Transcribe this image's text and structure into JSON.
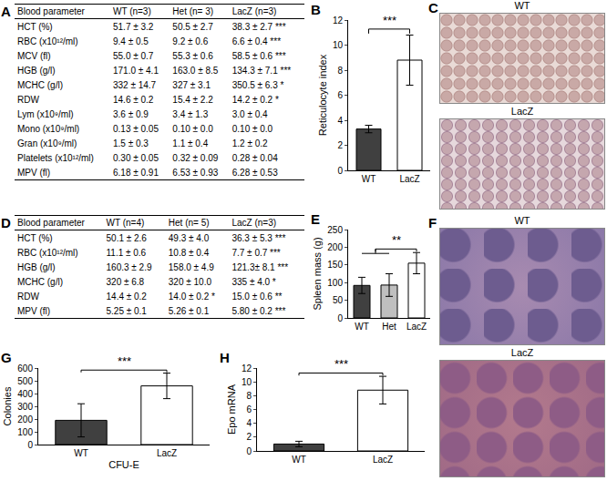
{
  "tables": [
    {
      "panel": "A",
      "header": [
        "Blood parameter",
        "WT (n=3)",
        "Het (n= 3)",
        "LacZ (n=3)"
      ],
      "rows": [
        [
          "HCT (%)",
          "51.7 ± 3.2",
          "50.5 ± 2.7",
          "38.3 ± 2.7 ***"
        ],
        [
          "RBC (x10¹²/ml)",
          "9.4 ± 0.5",
          "9.2 ± 0.6",
          "6.6 ± 0.4 ***"
        ],
        [
          "MCV (fl)",
          "55.0 ± 0.7",
          "55.3 ± 0.6",
          "58.5 ± 0.6 ***"
        ],
        [
          "HGB (g/l)",
          "171.0 ± 4.1",
          "163.0 ± 8.5",
          "134.3 ± 7.1 ***"
        ],
        [
          "MCHC (g/l)",
          "332 ± 14.7",
          "327 ± 3.1",
          "350.5 ± 6.3 *"
        ],
        [
          "RDW",
          "14.6 ± 0.2",
          "15.4 ± 2.2",
          "14.2 ± 0.2 *"
        ],
        [
          "Lym (x10⁹/ml)",
          "3.6 ± 0.9",
          "3.4 ± 1.3",
          "3.0 ± 0.4"
        ],
        [
          "Mono (x10⁹/ml)",
          "0.13 ± 0.05",
          "0.10 ± 0.0",
          "0.10 ± 0.0"
        ],
        [
          "Gran (x10⁹/ml)",
          "1.5 ± 0.3",
          "1.1 ± 0.4",
          "1.2 ± 0.2"
        ],
        [
          "Platelets (x10¹²/ml)",
          "0.30 ± 0.05",
          "0.32 ± 0.09",
          "0.28 ± 0.04"
        ],
        [
          "MPV (fl)",
          "6.18 ± 0.91",
          "6.53 ± 0.93",
          "6.28 ± 0.53"
        ]
      ]
    },
    {
      "panel": "D",
      "header": [
        "Blood parameter",
        "WT (n=4)",
        "Het (n= 5)",
        "LacZ (n=3)"
      ],
      "rows": [
        [
          "HCT (%)",
          "50.1 ± 2.6",
          "49.3 ± 4.0",
          "36.3 ± 5.3 ***"
        ],
        [
          "RBC (x10¹²/ml)",
          "11.1 ± 0.6",
          "10.8 ± 0.4",
          "7.7 ± 0.7 ***"
        ],
        [
          "HGB (g/l)",
          "160.3 ± 2.9",
          "158.0 ± 4.9",
          "121.3± 8.1 ***"
        ],
        [
          "MCHC (g/l)",
          "320 ± 6.8",
          "320 ± 10.0",
          "335 ± 4.0 *"
        ],
        [
          "RDW",
          "14.4 ± 0.2",
          "14.0 ± 0.2 *",
          "15.0 ± 0.6 **"
        ],
        [
          "MPV (fl)",
          "5.25 ± 0.1",
          "5.26 ± 0.1",
          "5.80 ± 0.2 ***"
        ]
      ]
    }
  ],
  "chart_data": [
    {
      "panel": "B",
      "type": "bar",
      "ylabel": "Reticulocyte index",
      "categories": [
        "WT",
        "LacZ"
      ],
      "values": [
        3.3,
        8.8
      ],
      "errors": [
        0.3,
        2.0
      ],
      "colors": [
        "#404040",
        "#ffffff"
      ],
      "ylim": [
        0,
        12
      ],
      "yticks": [
        0,
        2,
        4,
        6,
        8,
        10,
        12
      ],
      "annotations": [
        "***"
      ]
    },
    {
      "panel": "E",
      "type": "bar",
      "ylabel": "Spleen mass (g)",
      "categories": [
        "WT",
        "Het",
        "LacZ"
      ],
      "values": [
        92,
        93,
        155
      ],
      "errors": [
        23,
        32,
        30
      ],
      "colors": [
        "#404040",
        "#bfbfbf",
        "#ffffff"
      ],
      "ylim": [
        0,
        250
      ],
      "yticks": [
        0,
        50,
        100,
        150,
        200,
        250
      ],
      "annotations": [
        "**"
      ]
    },
    {
      "panel": "G",
      "type": "bar",
      "ylabel": "Colonies",
      "xlabel": "CFU-E",
      "categories": [
        "WT",
        "LacZ"
      ],
      "values": [
        190,
        460
      ],
      "errors": [
        130,
        100
      ],
      "colors": [
        "#404040",
        "#ffffff"
      ],
      "ylim": [
        0,
        600
      ],
      "yticks": [
        0,
        100,
        200,
        300,
        400,
        500,
        600
      ],
      "annotations": [
        "***"
      ]
    },
    {
      "panel": "H",
      "type": "bar",
      "ylabel": "Epo mRNA",
      "categories": [
        "WT",
        "LacZ"
      ],
      "values": [
        1.0,
        8.8
      ],
      "errors": [
        0.4,
        2.0
      ],
      "colors": [
        "#404040",
        "#ffffff"
      ],
      "ylim": [
        0,
        12
      ],
      "yticks": [
        0,
        2,
        4,
        6,
        8,
        10,
        12
      ],
      "annotations": [
        "***"
      ]
    }
  ],
  "images": [
    {
      "panel": "C",
      "labels": [
        "WT",
        "LacZ"
      ]
    },
    {
      "panel": "F",
      "labels": [
        "WT",
        "LacZ"
      ]
    }
  ]
}
